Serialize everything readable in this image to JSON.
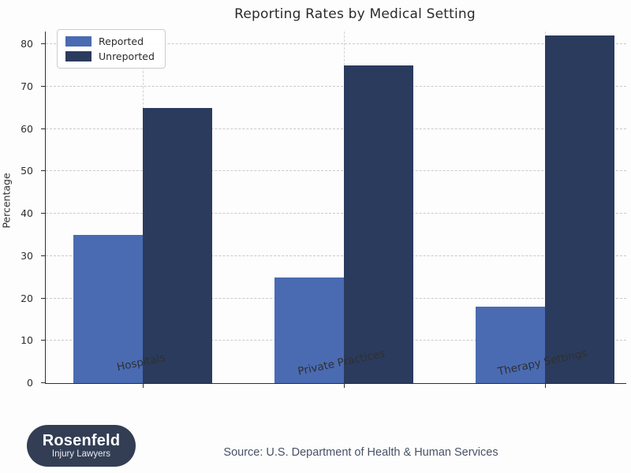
{
  "title": "Reporting Rates by Medical Setting",
  "chart_data": {
    "type": "bar",
    "title": "Reporting Rates by Medical Setting",
    "categories": [
      "Hospitals",
      "Private Practices",
      "Therapy Settings"
    ],
    "series": [
      {
        "name": "Reported",
        "color": "#4a6bb2",
        "values": [
          35,
          25,
          18
        ]
      },
      {
        "name": "Unreported",
        "color": "#2b3b5e",
        "values": [
          65,
          75,
          82
        ]
      }
    ],
    "xlabel": "",
    "ylabel": "Percentage",
    "ylim": [
      0,
      83
    ],
    "yticks": [
      0,
      10,
      20,
      30,
      40,
      50,
      60,
      70,
      80
    ],
    "grid": "dashed",
    "legend_position": "upper-left"
  },
  "legend": {
    "items": [
      {
        "label": "Reported",
        "color": "#4a6bb2"
      },
      {
        "label": "Unreported",
        "color": "#2b3b5e"
      }
    ]
  },
  "footer": {
    "source": "Source: U.S. Department of Health & Human Services",
    "logo_line1": "Rosenfeld",
    "logo_line2": "Injury Lawyers"
  },
  "colors": {
    "reported": "#4a6bb2",
    "unreported": "#2b3b5e",
    "background": "#fdfdfd",
    "axis": "#2f2f2f",
    "grid": "#c9c9c9",
    "source_text": "#475266",
    "logo_background": "#333e55"
  }
}
